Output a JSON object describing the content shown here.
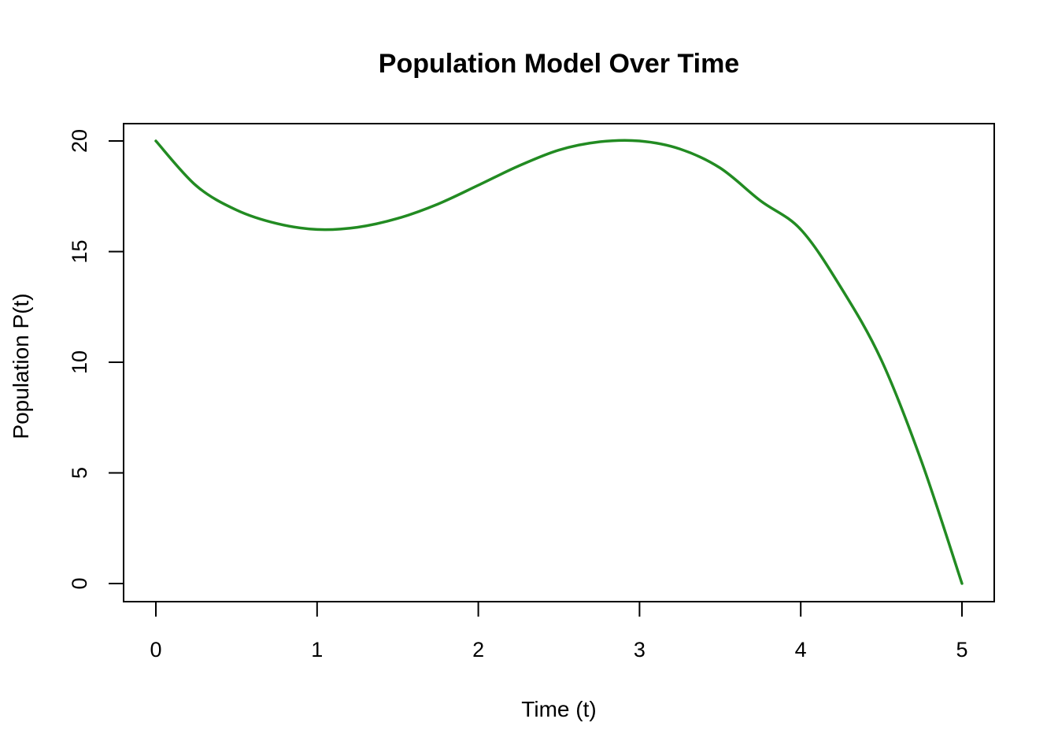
{
  "chart_data": {
    "type": "line",
    "title": "Population Model Over Time",
    "xlabel": "Time (t)",
    "ylabel": "Population P(t)",
    "xlim": [
      0,
      5
    ],
    "ylim": [
      0,
      20
    ],
    "x_ticks": [
      0,
      1,
      2,
      3,
      4,
      5
    ],
    "y_ticks": [
      0,
      5,
      10,
      15,
      20
    ],
    "grid": false,
    "legend": "none",
    "series": [
      {
        "color": "#228B22",
        "x": [
          0,
          0.25,
          0.5,
          0.75,
          1.0,
          1.25,
          1.5,
          1.75,
          2.0,
          2.25,
          2.5,
          2.75,
          3.0,
          3.25,
          3.5,
          3.75,
          4.0,
          4.25,
          4.5,
          4.75,
          5.0
        ],
        "y": [
          20,
          17.98,
          16.88,
          16.27,
          16,
          16.1,
          16.5,
          17.15,
          18,
          18.87,
          19.59,
          19.96,
          20,
          19.64,
          18.78,
          17.3,
          16,
          13.37,
          10.1,
          5.5,
          0
        ]
      }
    ]
  }
}
